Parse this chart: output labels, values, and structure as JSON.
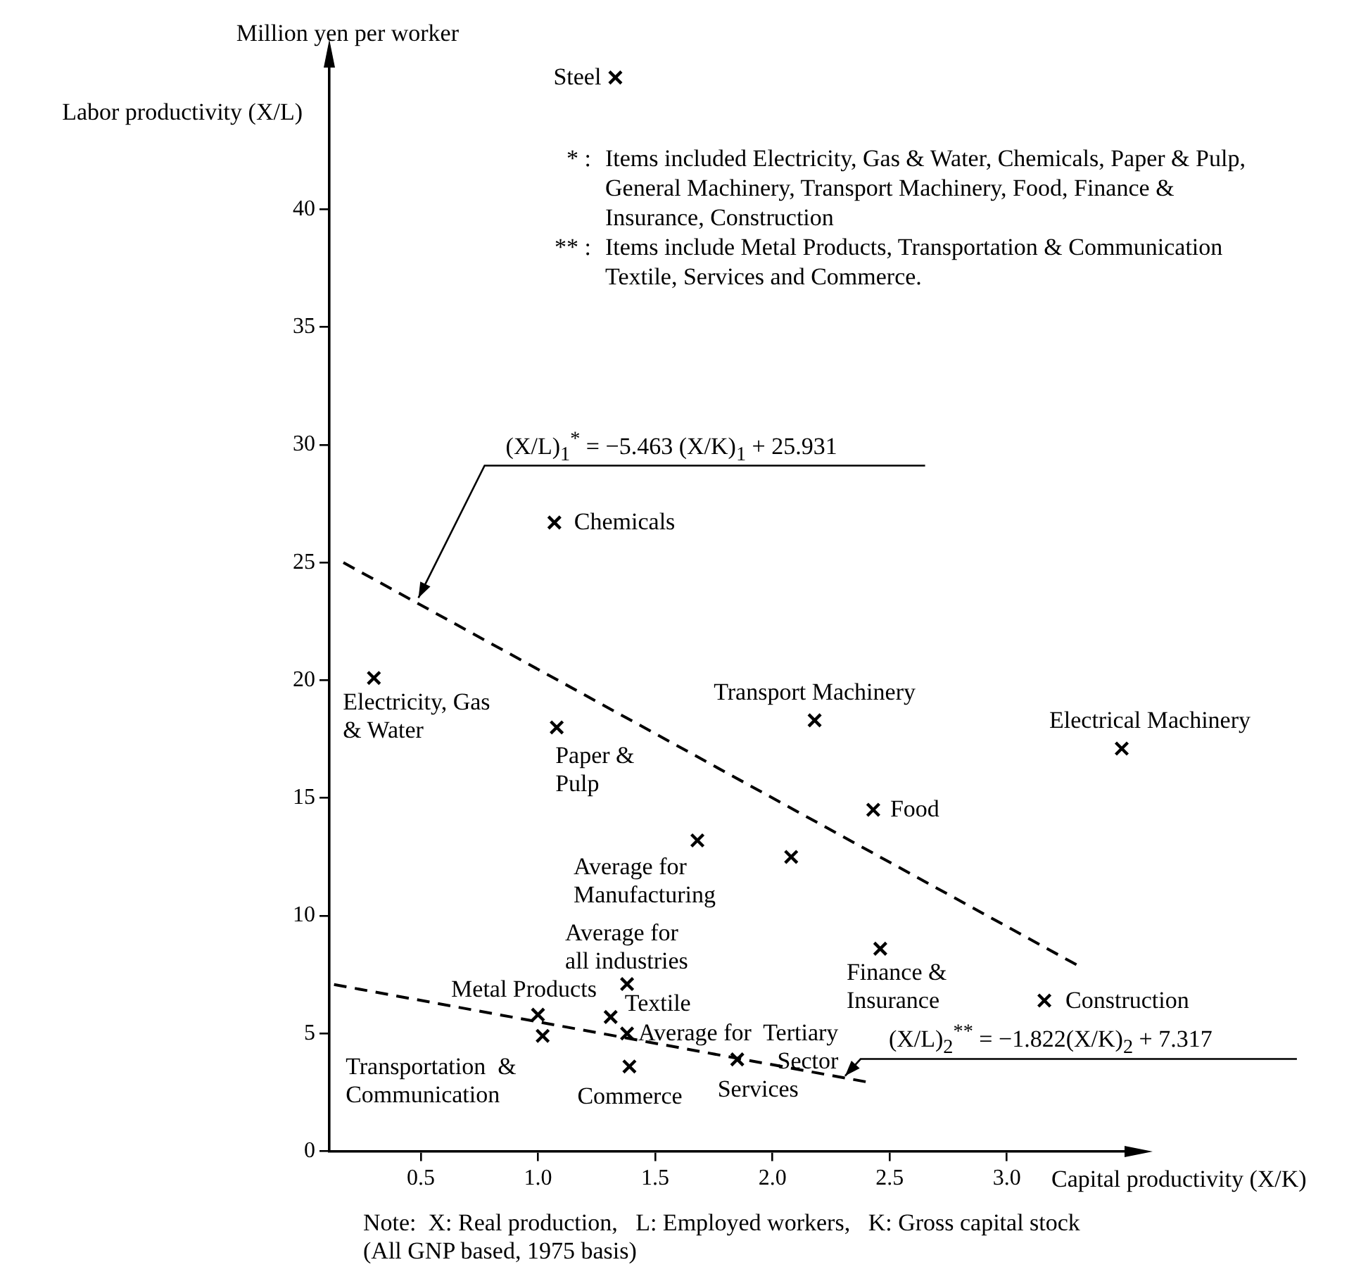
{
  "chart_data": {
    "type": "scatter",
    "xlabel": "Capital productivity (X/K)",
    "ylabel": "Labor productivity (X/L)",
    "xlim": [
      0.11,
      3.55
    ],
    "ylim": [
      0,
      46.5
    ],
    "xticks": [
      0.5,
      {
        "value": 1,
        "label": "1.0"
      },
      1.5,
      {
        "value": 2,
        "label": "2.0"
      },
      2.5,
      {
        "value": 3,
        "label": "3.0"
      }
    ],
    "yticks": [
      0,
      5,
      10,
      15,
      20,
      25,
      30,
      35,
      40
    ],
    "grid": false,
    "series": [
      {
        "marker": "cross",
        "color": "#000000",
        "x": [
          1.33,
          1.07,
          0.3,
          1.08,
          2.18,
          3.49,
          2.43,
          1.68,
          2.08,
          2.46,
          3.16,
          1.38,
          1.0,
          1.02,
          1.31,
          1.38,
          1.39,
          1.85
        ],
        "values": [
          45.6,
          26.7,
          20.1,
          18.0,
          18.3,
          17.1,
          14.5,
          13.2,
          12.5,
          8.6,
          6.4,
          7.1,
          5.8,
          4.9,
          5.7,
          5.0,
          3.6,
          3.9
        ]
      },
      {
        "type": "line",
        "line_style": "dashed",
        "color": "#000000",
        "x": [
          0.17,
          3.31
        ],
        "values": [
          25.0,
          7.85
        ]
      },
      {
        "type": "line",
        "line_style": "dashed",
        "color": "#000000",
        "x": [
          0.13,
          2.42
        ],
        "values": [
          7.08,
          2.91
        ]
      }
    ],
    "annotations": [
      {
        "text": "Steel",
        "x": 1.33,
        "y": 45.6
      },
      {
        "text": "Chemicals",
        "x": 1.07,
        "y": 26.7
      },
      {
        "text": "Electricity, Gas\n& Water",
        "x": 0.3,
        "y": 20.1
      },
      {
        "text": "Paper &\nPulp",
        "x": 1.08,
        "y": 18.0
      },
      {
        "text": "Transport Machinery",
        "x": 2.18,
        "y": 18.3
      },
      {
        "text": "Electrical Machinery",
        "x": 3.49,
        "y": 17.1
      },
      {
        "text": "Food",
        "x": 2.43,
        "y": 14.5
      },
      {
        "text": "Average for\nManufacturing",
        "x": 1.68,
        "y": 13.2
      },
      {
        "text": "Finance &\nInsurance",
        "x": 2.46,
        "y": 8.6
      },
      {
        "text": "Construction",
        "x": 3.16,
        "y": 6.4
      },
      {
        "text": "Average for\nall industries",
        "x": 1.38,
        "y": 7.1
      },
      {
        "text": "Metal Products",
        "x": 1.0,
        "y": 5.8
      },
      {
        "text": "Transportation  &\nCommunication",
        "x": 1.02,
        "y": 4.9
      },
      {
        "text": "Textile",
        "x": 1.31,
        "y": 5.7
      },
      {
        "text": "Average for  Tertiary\nSector",
        "x": 1.38,
        "y": 5.0
      },
      {
        "text": "Commerce",
        "x": 1.39,
        "y": 3.6
      },
      {
        "text": "Services",
        "x": 1.85,
        "y": 3.9
      },
      {
        "text": "(X/L)$_{1}$$^{*}$ = −5.463 (X/K)$_{1}$ + 25.931",
        "x": 0.49,
        "y": 23.5
      },
      {
        "text": "(X/L)$_{2}$$^{**}$ = −1.822(X/K)$_{2}$ + 7.317",
        "x": 2.31,
        "y": 3.2
      },
      "Million yen per worker",
      "* :  Items included Electricity, Gas & Water, Chemicals, Paper & Pulp,\nGeneral Machinery, Transport Machinery, Food, Finance &\nInsurance, Construction",
      "** :  Items include Metal Products, Transportation & Communication\nTextile, Services and Commerce.",
      "Note:  X: Real production,   L: Employed workers,   K: Gross capital stock\n(All GNP based, 1975 basis)"
    ]
  }
}
